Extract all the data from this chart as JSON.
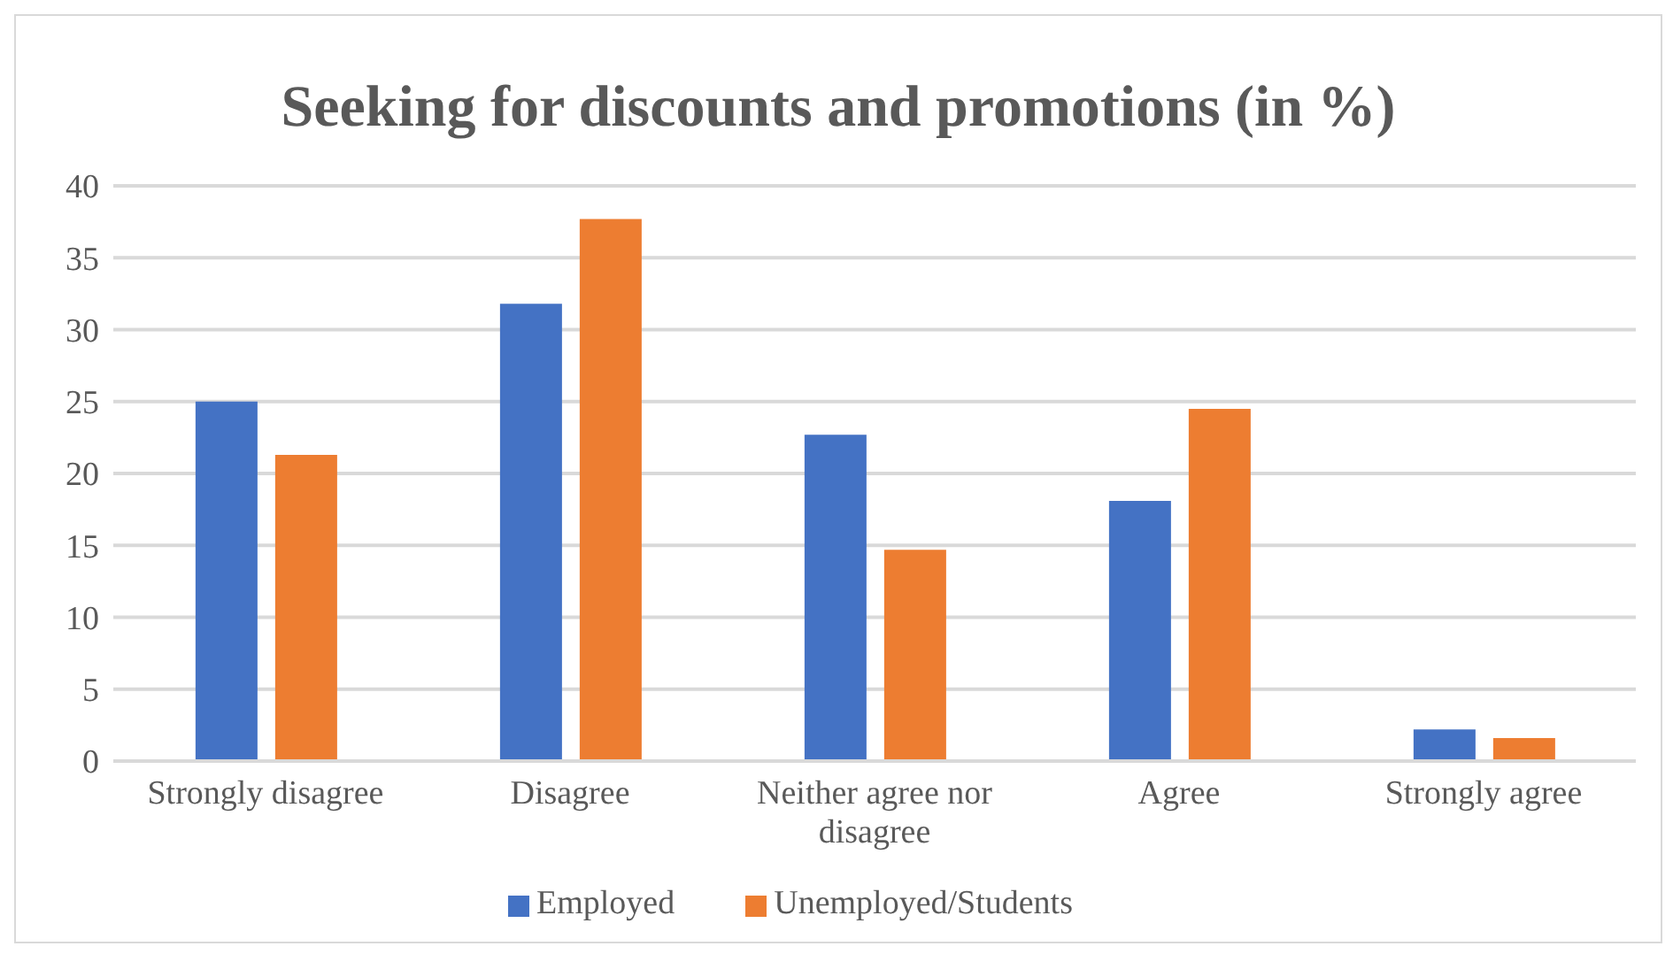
{
  "chart_data": {
    "type": "bar",
    "title": "Seeking for discounts and promotions (in %)",
    "categories": [
      "Strongly disagree",
      "Disagree",
      "Neither agree nor disagree",
      "Agree",
      "Strongly agree"
    ],
    "series": [
      {
        "name": "Employed",
        "color": "#4472c4",
        "values": [
          25.0,
          31.8,
          22.7,
          18.1,
          2.2
        ]
      },
      {
        "name": "Unemployed/Students",
        "color": "#ed7d31",
        "values": [
          21.3,
          37.7,
          14.7,
          24.5,
          1.6
        ]
      }
    ],
    "ylim": [
      0,
      40
    ],
    "yticks": [
      0,
      5,
      10,
      15,
      20,
      25,
      30,
      35,
      40
    ],
    "grid": "y",
    "legend": "bottom"
  }
}
